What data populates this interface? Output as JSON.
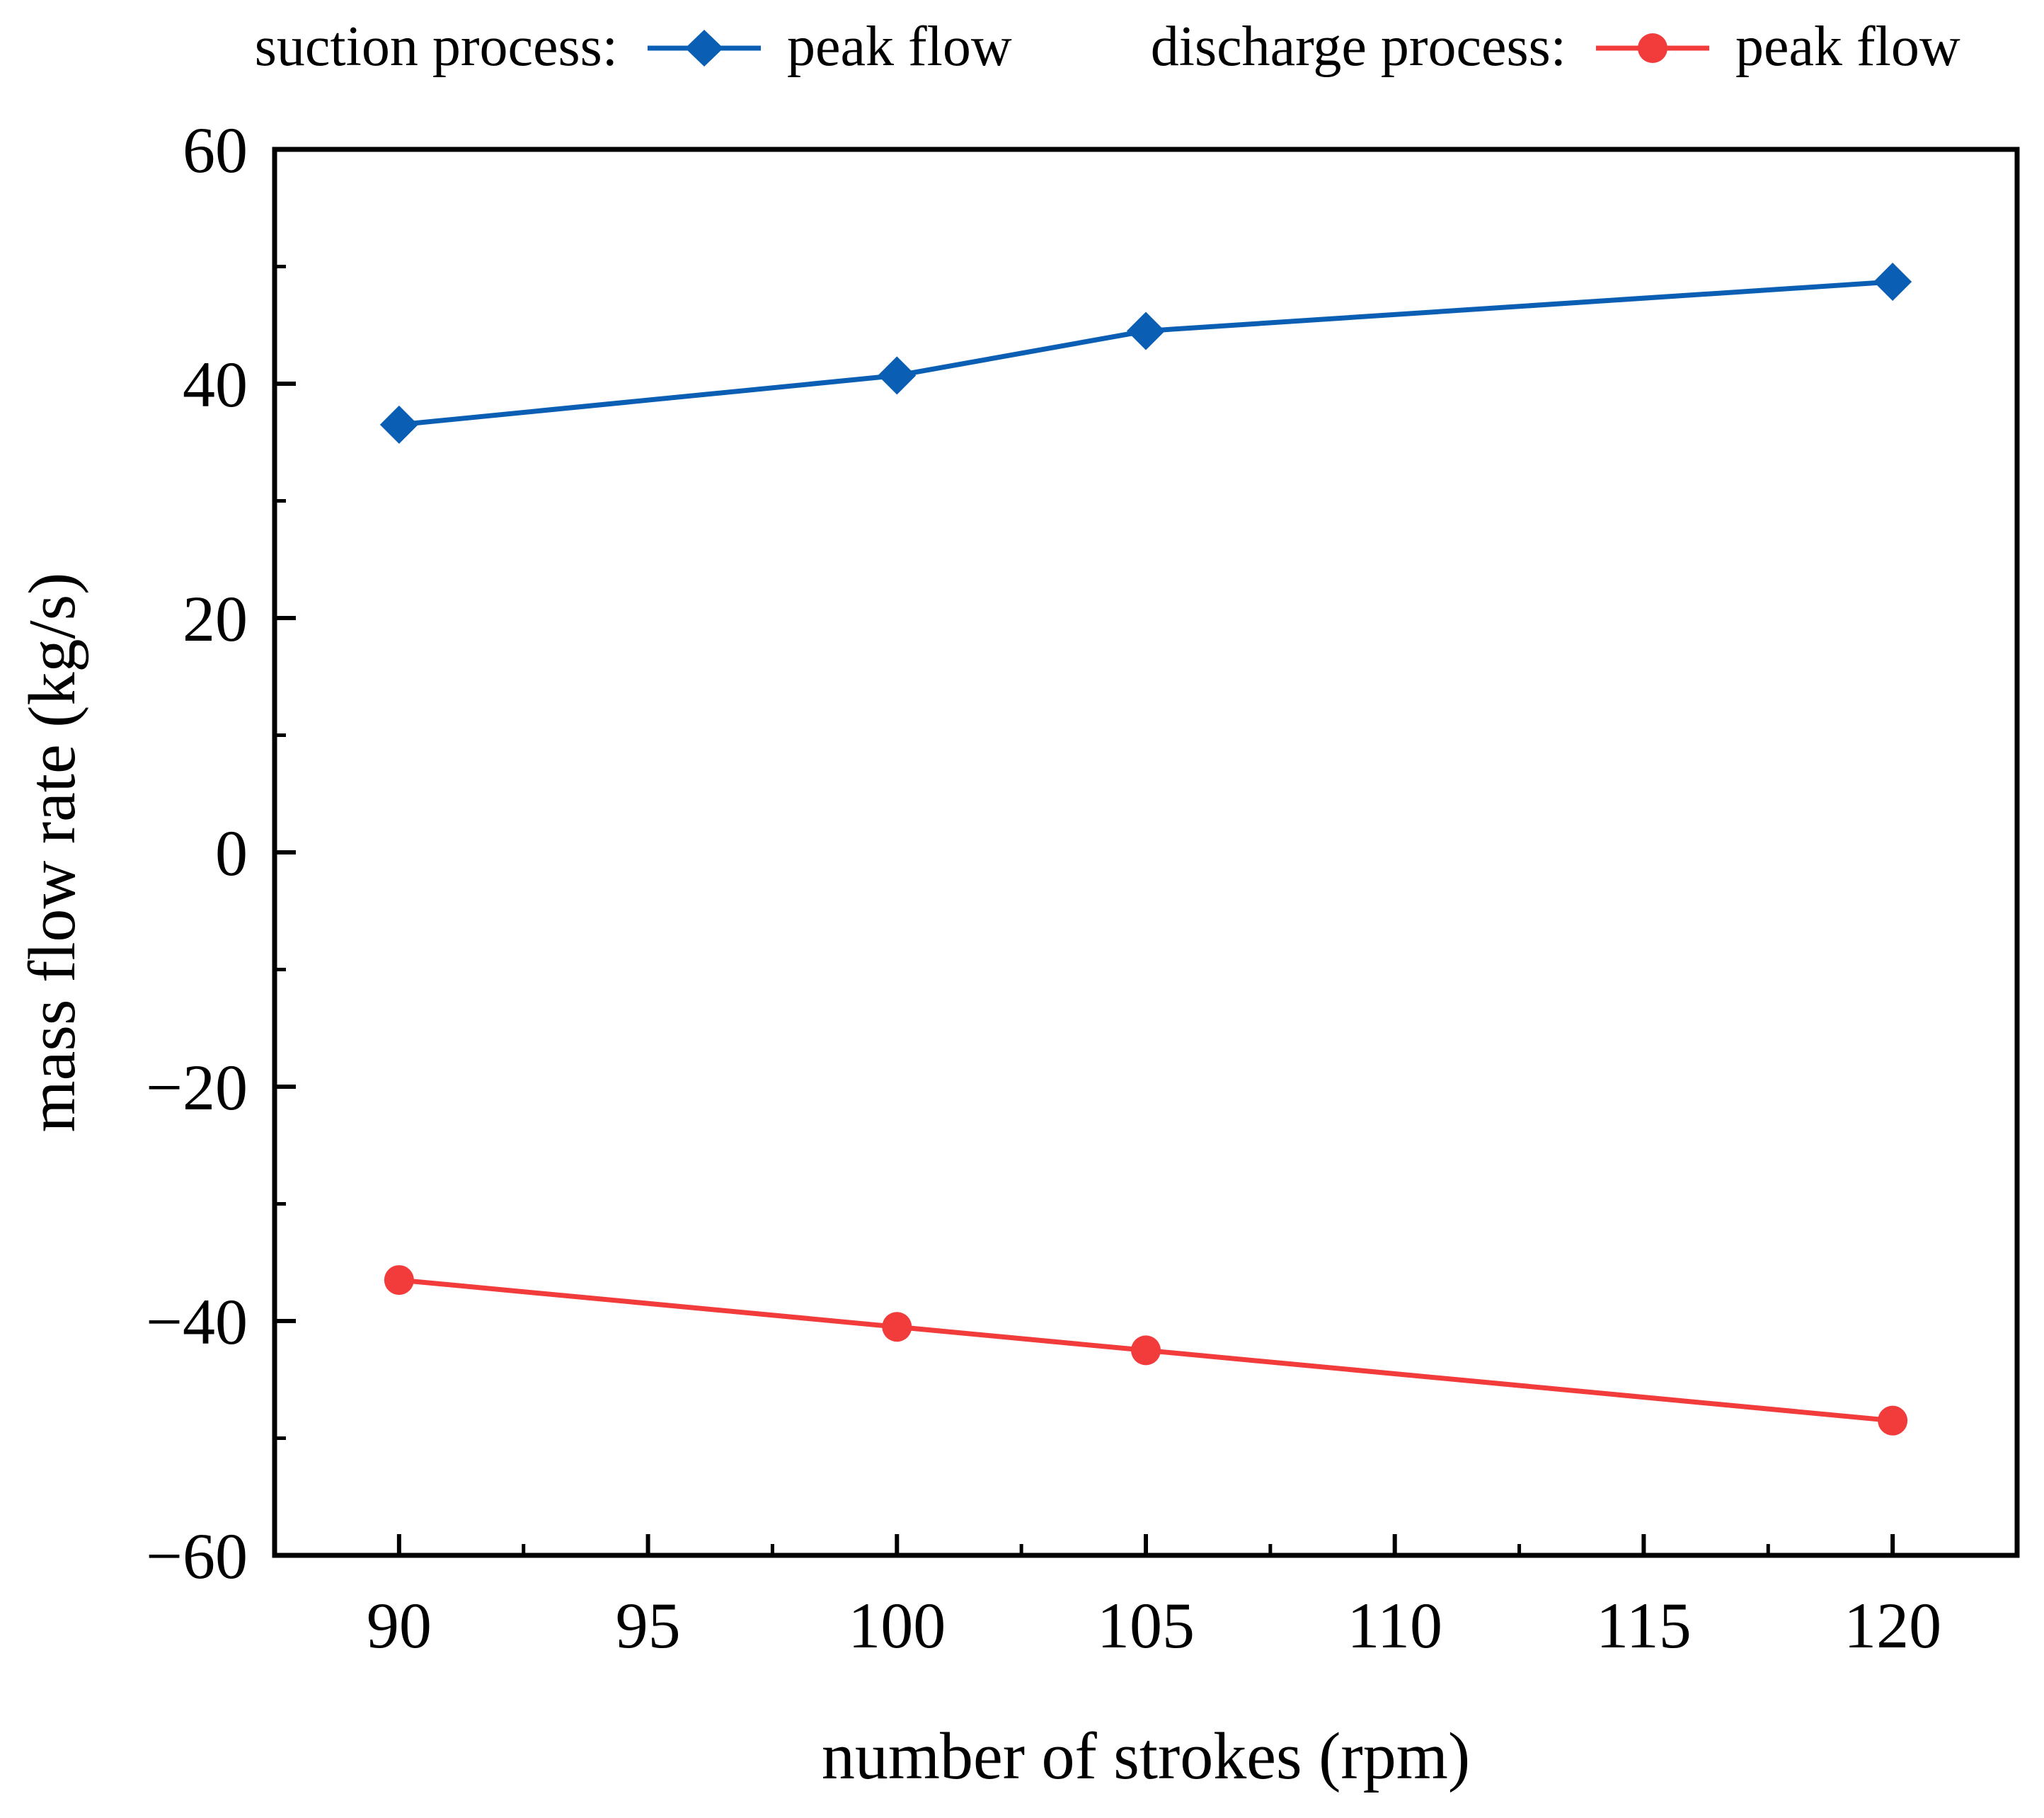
{
  "chart_data": {
    "type": "line",
    "title": "",
    "xlabel": "number of strokes (rpm)",
    "ylabel": "mass flow rate (kg/s)",
    "xlim": [
      87.5,
      122.5
    ],
    "ylim": [
      -60,
      60
    ],
    "xticks": [
      "90",
      "95",
      "100",
      "105",
      "110",
      "115",
      "120"
    ],
    "yticks": [
      "60",
      "40",
      "20",
      "0",
      "−20",
      "−40",
      "−60"
    ],
    "grid": false,
    "legend_position": "top, outside plot area",
    "series": [
      {
        "group": "suction process:",
        "name": "peak flow",
        "color": "#0a5fb4",
        "marker": "diamond",
        "x": [
          90,
          100,
          105,
          120
        ],
        "y": [
          36.5,
          40.7,
          44.5,
          48.7
        ]
      },
      {
        "group": "discharge process:",
        "name": "peak flow",
        "color": "#f23b3b",
        "marker": "circle",
        "x": [
          90,
          100,
          105,
          120
        ],
        "y": [
          -36.5,
          -40.5,
          -42.5,
          -48.5
        ]
      }
    ]
  }
}
